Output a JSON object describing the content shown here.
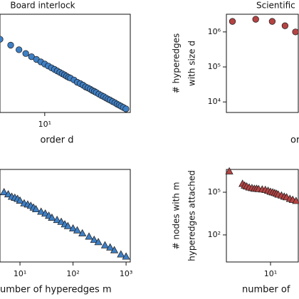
{
  "chart_data": [
    {
      "type": "scatter",
      "title": "Board interlock",
      "x_label": "order d",
      "xscale": "log",
      "yscale": "log",
      "xlim": [
        3,
        100
      ],
      "ylim": [
        1,
        10000
      ],
      "xticks": [
        {
          "value": 10,
          "label": "10¹"
        }
      ],
      "marker": "circle",
      "series": [
        {
          "color": "#3f7fc4",
          "x": [
            3,
            4,
            5,
            6,
            7,
            8,
            9,
            10,
            11,
            12,
            13,
            14,
            15,
            16,
            17,
            18,
            19,
            20,
            22,
            24,
            26,
            28,
            30,
            32,
            34,
            36,
            38,
            40,
            43,
            46,
            49,
            52,
            55,
            58,
            62,
            66,
            70,
            74,
            78,
            83,
            89
          ],
          "values": [
            960,
            551,
            358,
            252,
            187,
            145,
            115,
            94,
            78,
            66,
            57,
            49,
            43,
            38,
            34,
            30,
            27,
            25,
            21,
            17,
            15,
            13,
            11,
            10,
            8.9,
            7.9,
            7.2,
            6.5,
            5.6,
            4.9,
            4.4,
            3.9,
            3.5,
            3.2,
            2.8,
            2.5,
            2.2,
            2.0,
            1.8,
            1.6,
            1.4
          ]
        }
      ]
    },
    {
      "type": "scatter",
      "title": "Scientific",
      "x_label": "or",
      "y_label": [
        "# hyperedges",
        "with size d"
      ],
      "xscale": "log",
      "yscale": "log",
      "xlim": [
        1.8,
        6.3
      ],
      "ylim": [
        5000,
        3200000
      ],
      "yticks": [
        {
          "value": 10000,
          "label": "10⁴"
        },
        {
          "value": 100000,
          "label": "10⁵"
        },
        {
          "value": 1000000,
          "label": "10⁶"
        }
      ],
      "marker": "circle",
      "series": [
        {
          "color": "#b54343",
          "x": [
            2,
            3,
            4,
            5,
            6
          ],
          "values": [
            2000000,
            2300000,
            2000000,
            1500000,
            1000000
          ]
        }
      ]
    },
    {
      "type": "scatter",
      "x_label": "umber of hyperedges m",
      "xscale": "log",
      "yscale": "log",
      "xlim": [
        4.2,
        1200
      ],
      "ylim": [
        1,
        100000
      ],
      "xticks": [
        {
          "value": 10,
          "label": "10¹"
        },
        {
          "value": 100,
          "label": "10²"
        },
        {
          "value": 1000,
          "label": "10³"
        }
      ],
      "marker": "triangle",
      "series": [
        {
          "color": "#3f7fc4",
          "x": [
            5,
            6,
            7,
            8,
            9,
            10,
            12,
            14,
            16,
            18,
            20,
            25,
            30,
            35,
            40,
            50,
            60,
            70,
            80,
            100,
            120,
            150,
            200,
            250,
            300,
            400,
            500,
            600,
            800,
            1000
          ],
          "values": [
            6000,
            4600,
            3400,
            3000,
            2600,
            2100,
            1500,
            1300,
            1100,
            880,
            720,
            530,
            420,
            320,
            250,
            190,
            150,
            110,
            88,
            66,
            52,
            36,
            24,
            16,
            12,
            8.1,
            6.2,
            4.4,
            2.6,
            2.0
          ]
        }
      ]
    },
    {
      "type": "scatter",
      "x_label": "number of",
      "y_label": [
        "# nodes with m",
        "hyperedges attached"
      ],
      "xscale": "log",
      "yscale": "log",
      "xlim": [
        1.5,
        33
      ],
      "ylim": [
        1.25,
        4000000
      ],
      "xticks": [
        {
          "value": 10,
          "label": "10¹"
        }
      ],
      "yticks": [
        {
          "value": 100,
          "label": "10²"
        },
        {
          "value": 100000,
          "label": "10⁵"
        }
      ],
      "marker": "triangle",
      "series": [
        {
          "color": "#b54343",
          "x": [
            1.7,
            3,
            3.3,
            3.6,
            4,
            4.5,
            5,
            5.5,
            6,
            7,
            8,
            9,
            10,
            11,
            12,
            13,
            14,
            16,
            18,
            20,
            23,
            26,
            30
          ],
          "values": [
            3000000,
            400000,
            300000,
            260000,
            220000,
            200000,
            180000,
            180000,
            170000,
            160000,
            150000,
            130000,
            110000,
            100000,
            90000,
            80000,
            70000,
            60000,
            50000,
            45000,
            35000,
            30000,
            25000
          ]
        }
      ]
    }
  ]
}
